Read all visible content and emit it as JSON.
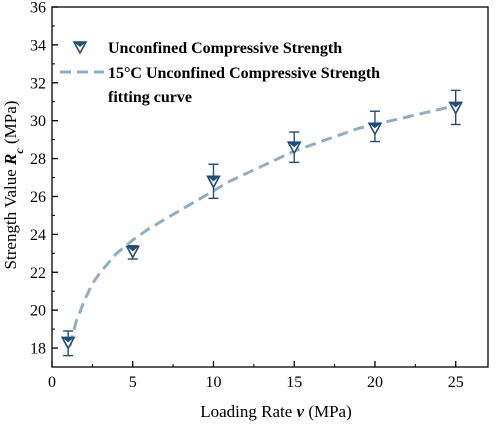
{
  "chart_data": {
    "type": "scatter",
    "x_axis": {
      "label_prefix": "Loading Rate ",
      "label_symbol": "v",
      "label_suffix": " (MPa)",
      "range": [
        0,
        27
      ],
      "ticks": [
        0,
        5,
        10,
        15,
        20,
        25
      ]
    },
    "y_axis": {
      "label_prefix": "Strength Value ",
      "label_symbol": "R",
      "label_subscript": "c",
      "label_suffix": " (MPa)",
      "range": [
        17,
        36
      ],
      "ticks": [
        18,
        20,
        22,
        24,
        26,
        28,
        30,
        32,
        34,
        36
      ]
    },
    "grid": false,
    "legend": {
      "placement": "top-left",
      "entries": [
        {
          "label": "Unconfined Compressive Strength"
        },
        {
          "label_line1": "15°C Unconfined Compressive Strength",
          "label_line2": "fitting curve"
        }
      ]
    },
    "series": [
      {
        "name": "Unconfined Compressive Strength",
        "kind": "points_with_error_bars",
        "color": "#1f4e79",
        "x": [
          1,
          5,
          10,
          15,
          20,
          25
        ],
        "y": [
          18.3,
          23.1,
          26.8,
          28.6,
          29.6,
          30.7
        ],
        "error_low": [
          0.7,
          0.4,
          0.9,
          0.8,
          0.7,
          0.9
        ],
        "error_high": [
          0.6,
          0.3,
          0.9,
          0.8,
          0.9,
          0.9
        ]
      },
      {
        "name": "15°C Unconfined Compressive Strength fitting curve",
        "kind": "dashed_curve",
        "color": "#8fafc9",
        "x": [
          1.1,
          1.5,
          2,
          2.5,
          3,
          3.5,
          4,
          5,
          6,
          7,
          8,
          9,
          10,
          11,
          12,
          13,
          14,
          15,
          16,
          17,
          18,
          19,
          20,
          21,
          22,
          23,
          24,
          25
        ],
        "y": [
          18.1,
          19.4,
          20.5,
          21.4,
          22.0,
          22.5,
          23.0,
          23.7,
          24.3,
          24.8,
          25.3,
          25.8,
          26.3,
          26.8,
          27.2,
          27.6,
          28.0,
          28.4,
          28.7,
          29.0,
          29.3,
          29.6,
          29.8,
          30.0,
          30.2,
          30.4,
          30.6,
          30.8
        ]
      }
    ]
  }
}
